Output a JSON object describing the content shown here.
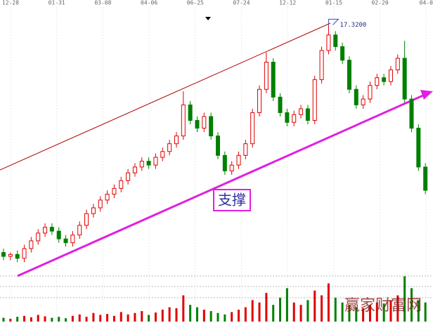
{
  "chart_data": {
    "type": "candlestick",
    "x_labels": [
      "12-28",
      "01-31",
      "03-08",
      "04-06",
      "06-25",
      "07-24",
      "12-12",
      "01-15",
      "02-20",
      "04-0"
    ],
    "open": [
      5.6,
      5.4,
      5.5,
      5.3,
      5.8,
      6.2,
      6.6,
      6.9,
      6.7,
      6.3,
      6.1,
      6.5,
      7.0,
      7.6,
      7.9,
      8.3,
      8.6,
      8.9,
      9.3,
      9.7,
      10.0,
      10.3,
      10.1,
      10.5,
      10.8,
      11.2,
      11.6,
      13.2,
      12.4,
      12.0,
      12.6,
      11.6,
      10.6,
      9.8,
      10.1,
      10.6,
      11.2,
      12.8,
      14.0,
      15.4,
      13.6,
      12.8,
      12.3,
      12.7,
      13.0,
      12.4,
      14.5,
      16.0,
      16.8,
      16.2,
      15.5,
      14.0,
      13.2,
      13.5,
      14.2,
      14.6,
      14.4,
      15.0,
      15.6,
      13.5,
      12.0,
      10.0
    ],
    "high": [
      5.8,
      5.6,
      5.7,
      6.0,
      6.4,
      6.8,
      7.1,
      7.1,
      6.9,
      6.5,
      6.7,
      7.2,
      7.8,
      8.1,
      8.5,
      8.8,
      9.1,
      9.5,
      9.9,
      10.2,
      10.5,
      10.5,
      10.7,
      11.0,
      11.4,
      11.8,
      13.9,
      13.4,
      12.6,
      12.8,
      12.8,
      11.8,
      10.8,
      10.3,
      10.8,
      11.4,
      13.0,
      14.2,
      15.9,
      15.6,
      13.8,
      13.0,
      12.9,
      13.2,
      13.2,
      14.7,
      16.2,
      17.32,
      17.0,
      16.4,
      15.7,
      14.2,
      13.7,
      14.4,
      14.8,
      14.8,
      15.2,
      15.8,
      16.5,
      13.7,
      12.2,
      10.2
    ],
    "low": [
      5.2,
      5.2,
      5.1,
      5.1,
      5.6,
      6.0,
      6.4,
      6.5,
      6.1,
      5.9,
      5.9,
      6.3,
      6.8,
      7.4,
      7.7,
      8.1,
      8.4,
      8.7,
      9.1,
      9.5,
      9.8,
      9.9,
      9.9,
      10.3,
      10.6,
      11.0,
      11.4,
      12.2,
      11.8,
      11.8,
      11.4,
      10.4,
      9.6,
      9.6,
      9.9,
      10.4,
      11.0,
      12.6,
      13.8,
      13.4,
      12.6,
      12.1,
      12.1,
      12.5,
      12.2,
      12.2,
      14.3,
      15.8,
      16.0,
      15.3,
      13.8,
      13.0,
      13.0,
      13.3,
      14.0,
      14.2,
      14.2,
      14.8,
      13.3,
      11.8,
      9.8,
      8.6
    ],
    "close": [
      5.4,
      5.5,
      5.3,
      5.8,
      6.2,
      6.6,
      6.9,
      6.7,
      6.3,
      6.1,
      6.5,
      7.0,
      7.6,
      7.9,
      8.3,
      8.6,
      8.9,
      9.3,
      9.7,
      10.0,
      10.3,
      10.1,
      10.5,
      10.8,
      11.2,
      11.6,
      13.2,
      12.4,
      12.0,
      12.6,
      11.6,
      10.6,
      9.8,
      10.1,
      10.6,
      11.2,
      12.8,
      14.0,
      15.4,
      13.6,
      12.8,
      12.3,
      12.7,
      13.0,
      12.4,
      14.5,
      16.0,
      16.8,
      16.2,
      15.5,
      14.0,
      13.2,
      13.5,
      14.2,
      14.6,
      14.4,
      15.0,
      15.6,
      13.5,
      12.0,
      10.0,
      8.8
    ],
    "volume": [
      8,
      6,
      10,
      12,
      9,
      14,
      11,
      8,
      10,
      7,
      12,
      15,
      10,
      18,
      14,
      16,
      12,
      20,
      15,
      18,
      22,
      14,
      19,
      25,
      30,
      28,
      55,
      35,
      30,
      25,
      22,
      18,
      15,
      20,
      25,
      30,
      45,
      40,
      60,
      35,
      50,
      70,
      40,
      35,
      45,
      65,
      55,
      80,
      50,
      40,
      35,
      30,
      28,
      35,
      40,
      38,
      45,
      55,
      95,
      70,
      45,
      40
    ],
    "ylim": [
      4.5,
      18.6
    ],
    "volume_lim": [
      0,
      100
    ],
    "up_color": "#e00000",
    "down_color": "#008000",
    "high_label": "17.3200",
    "support_label": "支撑",
    "watermark": "赢家财富网"
  }
}
